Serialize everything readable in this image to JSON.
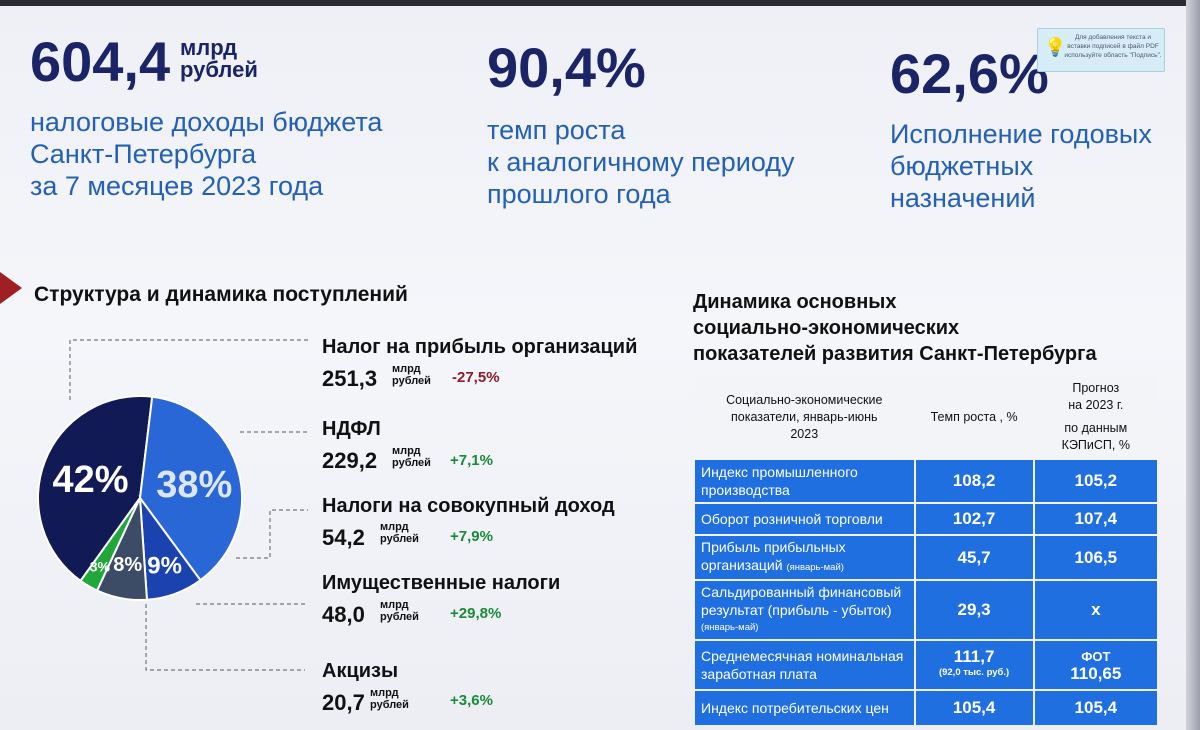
{
  "kpis": [
    {
      "value": "604,4",
      "unit_line1": "млрд",
      "unit_line2": "рублей",
      "desc": [
        "налоговые доходы бюджета",
        "Санкт-Петербурга",
        "за 7 месяцев 2023 года"
      ]
    },
    {
      "value": "90,4%",
      "desc": [
        "темп роста",
        "к аналогичному периоду",
        "прошлого года"
      ]
    },
    {
      "value": "62,6%",
      "desc": [
        "Исполнение годовых",
        "бюджетных",
        "назначений"
      ]
    }
  ],
  "hint": "Для добавления текста и вставки подписей в файл PDF используйте область \"Подпись\".",
  "structure_title": "Структура и динамика поступлений",
  "chart_data": {
    "type": "pie",
    "slices": [
      {
        "label": "42%",
        "value": 42,
        "color": "#111a55"
      },
      {
        "label": "38%",
        "value": 38,
        "color": "#2a67d6"
      },
      {
        "label": "9%",
        "value": 9,
        "color": "#1b43b0"
      },
      {
        "label": "8%",
        "value": 8,
        "color": "#3d4c66"
      },
      {
        "label": "3%",
        "value": 3,
        "color": "#22a83a"
      }
    ]
  },
  "revenues": [
    {
      "name": "Налог на прибыль организаций",
      "value": "251,3",
      "unit1": "млрд",
      "unit2": "рублей",
      "change": "-27,5%"
    },
    {
      "name": "НДФЛ",
      "value": "229,2",
      "unit1": "млрд",
      "unit2": "рублей",
      "change": "+7,1%"
    },
    {
      "name": "Налоги на совокупный доход",
      "value": "54,2",
      "unit1": "млрд",
      "unit2": "рублей",
      "change": "+7,9%"
    },
    {
      "name": "Имущественные налоги",
      "value": "48,0",
      "unit1": "млрд",
      "unit2": "рублей",
      "change": "+29,8%"
    },
    {
      "name": "Акцизы",
      "value": "20,7",
      "unit1": "млрд",
      "unit2": "рублей",
      "change": "+3,6%"
    }
  ],
  "dynamics_title": [
    "Динамика основных",
    "социально-экономических",
    "показателей развития Санкт-Петербурга"
  ],
  "table": {
    "headers": {
      "col1": [
        "Социально-экономические",
        "показатели, январь-июнь",
        "2023"
      ],
      "col2": "Темп роста , %",
      "col3": [
        "Прогноз",
        "на 2023 г.",
        "по данным",
        "КЭПиСП, %"
      ]
    },
    "rows": [
      {
        "label": [
          "Индекс промышленного",
          "производства"
        ],
        "note": "",
        "growth": "108,2",
        "growth_note": "",
        "forecast": "105,2",
        "forecast_note": ""
      },
      {
        "label": [
          "Оборот розничной торговли"
        ],
        "note": "",
        "growth": "102,7",
        "growth_note": "",
        "forecast": "107,4",
        "forecast_note": ""
      },
      {
        "label": [
          "Прибыль прибыльных",
          "организаций"
        ],
        "note": "(январь-май)",
        "growth": "45,7",
        "growth_note": "",
        "forecast": "106,5",
        "forecast_note": ""
      },
      {
        "label": [
          "Сальдированный финансовый",
          "результат (прибыль - убыток)"
        ],
        "note": "(январь-май)",
        "growth": "29,3",
        "growth_note": "",
        "forecast": "х",
        "forecast_note": ""
      },
      {
        "label": [
          "Среднемесячная номинальная",
          "заработная плата"
        ],
        "note": "",
        "growth": "111,7",
        "growth_note": "(92,0 тыс. руб.)",
        "forecast": "110,65",
        "forecast_note": "ФОТ"
      },
      {
        "label": [
          "Индекс потребительских цен"
        ],
        "note": "",
        "growth": "105,4",
        "growth_note": "",
        "forecast": "105,4",
        "forecast_note": ""
      }
    ]
  }
}
